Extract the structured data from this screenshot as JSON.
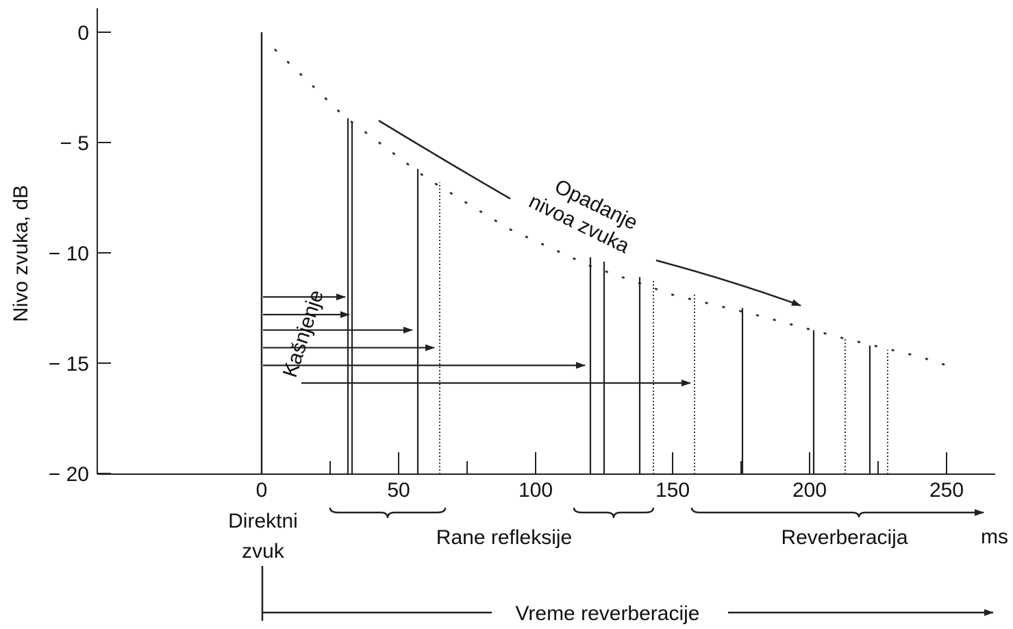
{
  "chart_data": {
    "type": "bar",
    "title": "",
    "xlabel": "ms",
    "ylabel": "Nivo zvuka, dB",
    "xlim": [
      0,
      265
    ],
    "ylim": [
      -20,
      0
    ],
    "x_ticks": [
      0,
      50,
      100,
      150,
      200,
      250
    ],
    "x_tick_labels": [
      "0",
      "50",
      "100",
      "150",
      "200",
      "250"
    ],
    "y_ticks": [
      0,
      -5,
      -10,
      -15,
      -20
    ],
    "y_tick_labels": [
      "0",
      "− 5",
      "− 10",
      "− 15",
      "− 20"
    ],
    "grid": false,
    "minor_x_ticks": [
      25,
      75,
      125,
      175,
      225
    ],
    "direct_sound": {
      "x": 0,
      "y": 0
    },
    "reflections": [
      {
        "x": 31.5,
        "y": -3.9,
        "style": "solid"
      },
      {
        "x": 33,
        "y": -4.1,
        "style": "solid"
      },
      {
        "x": 57,
        "y": -6.2,
        "style": "solid"
      },
      {
        "x": 65,
        "y": -6.8,
        "style": "dotted"
      },
      {
        "x": 120,
        "y": -10.2,
        "style": "solid"
      },
      {
        "x": 125,
        "y": -10.4,
        "style": "solid"
      },
      {
        "x": 138,
        "y": -11.1,
        "style": "solid"
      },
      {
        "x": 143,
        "y": -11.2,
        "style": "dotted"
      },
      {
        "x": 158,
        "y": -11.9,
        "style": "dotted"
      },
      {
        "x": 175.5,
        "y": -12.5,
        "style": "solid"
      },
      {
        "x": 201.5,
        "y": -13.5,
        "style": "solid"
      },
      {
        "x": 213,
        "y": -13.9,
        "style": "dotted"
      },
      {
        "x": 222,
        "y": -14.2,
        "style": "solid"
      },
      {
        "x": 228.5,
        "y": -14.4,
        "style": "dotted"
      }
    ],
    "envelope": {
      "x": [
        5,
        30,
        60,
        90,
        120,
        150,
        180,
        210,
        240,
        250
      ],
      "y": [
        -0.8,
        -3.8,
        -6.6,
        -8.9,
        -10.6,
        -11.9,
        -12.8,
        -13.8,
        -14.7,
        -15.1
      ]
    },
    "delay_arrows": [
      {
        "y": -12.0,
        "to_x": 31.5
      },
      {
        "y": -12.8,
        "to_x": 33
      },
      {
        "y": -13.5,
        "to_x": 56
      },
      {
        "y": -14.3,
        "to_x": 64
      },
      {
        "y": -15.1,
        "to_x": 119
      },
      {
        "y": -15.9,
        "to_x": 157.5
      }
    ],
    "annotations": {
      "delay": "Kašnjenje",
      "decay_line1": "Opadanje",
      "decay_line2": "nivoa zvuka",
      "direct_line1": "Direktni",
      "direct_line2": "zvuk",
      "early_reflections": "Rane  refleksije",
      "reverberation": "Reverberacija",
      "reverberation_time": "Vreme  reverberacije"
    },
    "brackets": [
      {
        "from": 25,
        "to": 67
      },
      {
        "from": 114,
        "to": 143
      }
    ],
    "reverb_range": {
      "from": 157,
      "to": 266
    }
  }
}
